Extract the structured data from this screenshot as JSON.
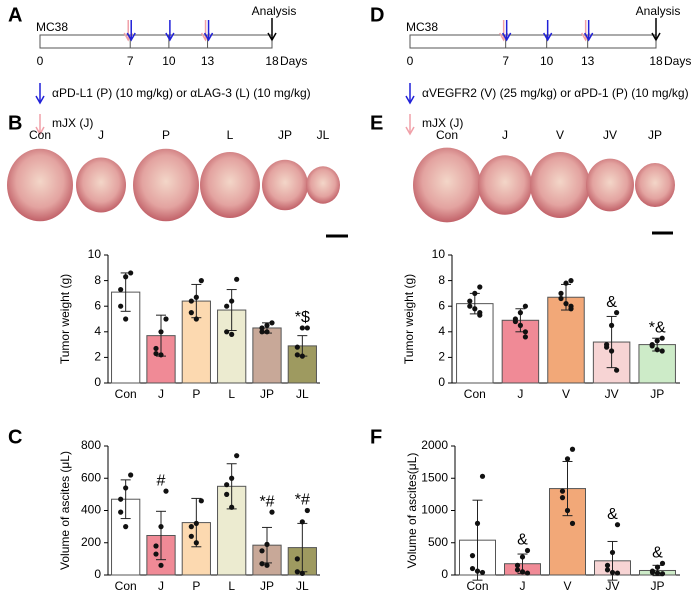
{
  "timelines": [
    {
      "panel": "A",
      "model": "MC38",
      "ticks": [
        0,
        7,
        10,
        13,
        18
      ],
      "unit": "Days",
      "end_label": "Analysis",
      "blue_days": [
        7,
        10,
        13
      ],
      "pink_days": [
        7,
        13
      ],
      "blue_legend": "αPD-L1 (P) (10 mg/kg) or αLAG-3 (L) (10 mg/kg)",
      "pink_legend": "mJX (J)"
    },
    {
      "panel": "D",
      "model": "MC38",
      "ticks": [
        0,
        7,
        10,
        13,
        18
      ],
      "unit": "Days",
      "end_label": "Analysis",
      "blue_days": [
        7,
        10,
        13
      ],
      "pink_days": [
        7,
        13
      ],
      "blue_legend": "αVEGFR2 (V) (25 mg/kg) or αPD-1 (P) (10 mg/kg)",
      "pink_legend": "mJX (J)"
    }
  ],
  "photos": [
    {
      "panel": "B",
      "labels": [
        "Con",
        "J",
        "P",
        "L",
        "JP",
        "JL"
      ]
    },
    {
      "panel": "E",
      "labels": [
        "Con",
        "J",
        "V",
        "JV",
        "JP"
      ]
    }
  ],
  "chart_data": [
    {
      "type": "bar",
      "ylabel": "Tumor weight (g)",
      "categories": [
        "Con",
        "J",
        "P",
        "L",
        "JP",
        "JL"
      ],
      "values": [
        7.1,
        3.7,
        6.4,
        5.7,
        4.3,
        2.9
      ],
      "errors": [
        1.5,
        1.6,
        1.3,
        1.6,
        0.4,
        0.8
      ],
      "colors": [
        "#ffffff",
        "#f08a96",
        "#fcd9b0",
        "#ecebd0",
        "#c8a898",
        "#9e9a60"
      ],
      "points": [
        [
          8.6,
          8.3,
          7.3,
          6.0,
          5.0
        ],
        [
          5.0,
          4.0,
          2.7,
          2.3,
          2.2
        ],
        [
          8.0,
          6.7,
          6.4,
          5.5,
          5.0
        ],
        [
          8.1,
          6.4,
          6.0,
          4.0,
          3.8
        ],
        [
          4.7,
          4.5,
          4.3,
          4.0,
          4.0
        ],
        [
          4.3,
          4.3,
          2.8,
          2.2,
          2.1
        ]
      ],
      "annotations": [
        null,
        null,
        null,
        null,
        null,
        "*$"
      ],
      "ylim": [
        0,
        10
      ],
      "yticks": [
        0,
        2,
        4,
        6,
        8,
        10
      ]
    },
    {
      "type": "bar",
      "ylabel": "Tumor weight (g)",
      "categories": [
        "Con",
        "J",
        "V",
        "JV",
        "JP"
      ],
      "values": [
        6.2,
        4.9,
        6.7,
        3.2,
        3.0
      ],
      "errors": [
        0.8,
        0.9,
        1.0,
        2.0,
        0.5
      ],
      "colors": [
        "#ffffff",
        "#f08a96",
        "#f2a878",
        "#f7d4d4",
        "#cdebc8"
      ],
      "points": [
        [
          7.5,
          7.0,
          6.4,
          6.0,
          5.8,
          5.5,
          5.3
        ],
        [
          6.0,
          5.5,
          5.0,
          4.8,
          4.5,
          4.0,
          3.6
        ],
        [
          8.0,
          7.8,
          7.0,
          6.6,
          6.2,
          6.0,
          5.8
        ],
        [
          5.5,
          4.5,
          3.0,
          2.8,
          2.5,
          1.0
        ],
        [
          3.5,
          3.3,
          3.0,
          2.9,
          2.6,
          2.5
        ]
      ],
      "annotations": [
        null,
        null,
        null,
        "&",
        "*&"
      ],
      "ylim": [
        0,
        10
      ],
      "yticks": [
        0,
        2,
        4,
        6,
        8,
        10
      ]
    },
    {
      "type": "bar",
      "panel": "C",
      "ylabel": "Volume of ascites (μL)",
      "categories": [
        "Con",
        "J",
        "P",
        "L",
        "JP",
        "JL"
      ],
      "values": [
        470,
        245,
        325,
        550,
        185,
        170
      ],
      "errors": [
        120,
        150,
        150,
        140,
        110,
        150
      ],
      "colors": [
        "#ffffff",
        "#f08a96",
        "#fcd9b0",
        "#ecebd0",
        "#c8a898",
        "#9e9a60"
      ],
      "points": [
        [
          620,
          540,
          470,
          390,
          300
        ],
        [
          520,
          300,
          180,
          130,
          60
        ],
        [
          460,
          320,
          300,
          240,
          200
        ],
        [
          740,
          600,
          560,
          500,
          420
        ],
        [
          390,
          190,
          150,
          70,
          60
        ],
        [
          400,
          330,
          100,
          20,
          10
        ]
      ],
      "annotations": [
        null,
        "#",
        null,
        null,
        "*#",
        "*#"
      ],
      "ylim": [
        0,
        800
      ],
      "yticks": [
        0,
        200,
        400,
        600,
        800
      ]
    },
    {
      "type": "bar",
      "panel": "F",
      "ylabel": "Volume of ascites(μL)",
      "categories": [
        "Con",
        "J",
        "V",
        "JV",
        "JP"
      ],
      "values": [
        540,
        175,
        1340,
        220,
        70
      ],
      "errors": [
        620,
        150,
        420,
        300,
        80
      ],
      "colors": [
        "#ffffff",
        "#f08a96",
        "#f2a878",
        "#f7d4d4",
        "#cdebc8"
      ],
      "points": [
        [
          1530,
          800,
          300,
          100,
          60,
          40
        ],
        [
          380,
          280,
          150,
          80,
          50,
          30
        ],
        [
          1950,
          1800,
          1300,
          1200,
          1000,
          800
        ],
        [
          780,
          350,
          150,
          80,
          40,
          30
        ],
        [
          180,
          120,
          60,
          40,
          30,
          20
        ]
      ],
      "annotations": [
        null,
        "&",
        null,
        "&",
        "&"
      ],
      "ylim": [
        0,
        2000
      ],
      "yticks": [
        0,
        500,
        1000,
        1500,
        2000
      ]
    }
  ]
}
